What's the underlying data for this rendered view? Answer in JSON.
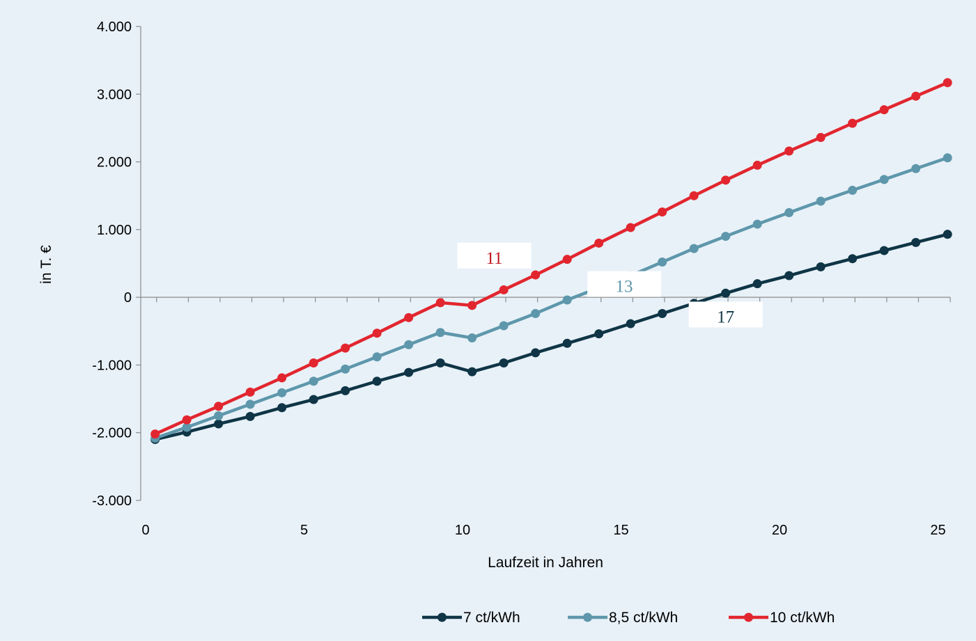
{
  "chart_data": {
    "type": "line",
    "title": "",
    "xlabel": "Laufzeit in Jahren",
    "ylabel": "in T. €",
    "xlim": [
      0,
      25.5
    ],
    "ylim": [
      -3000,
      4000
    ],
    "x_ticks": [
      0,
      5,
      10,
      15,
      20,
      25
    ],
    "x_tick_labels": [
      "0",
      "5",
      "10",
      "15",
      "20",
      "25"
    ],
    "y_ticks": [
      -3000,
      -2000,
      -1000,
      0,
      1000,
      2000,
      3000,
      4000
    ],
    "y_tick_labels": [
      "-3.000",
      "-2.000",
      "-1.000",
      "0",
      "1.000",
      "2.000",
      "3.000",
      "4.000"
    ],
    "grid": false,
    "legend_position": "bottom",
    "x": [
      0.3,
      1.3,
      2.3,
      3.3,
      4.3,
      5.3,
      6.3,
      7.3,
      8.3,
      9.3,
      10.3,
      11.3,
      12.3,
      13.3,
      14.3,
      15.3,
      16.3,
      17.3,
      18.3,
      19.3,
      20.3,
      21.3,
      22.3,
      23.3,
      24.3,
      25.3
    ],
    "series": [
      {
        "name": "7 ct/kWh",
        "color": "#0f3546",
        "values": [
          -2100,
          -1990,
          -1870,
          -1760,
          -1630,
          -1510,
          -1380,
          -1240,
          -1110,
          -970,
          -1100,
          -970,
          -820,
          -680,
          -540,
          -390,
          -240,
          -90,
          60,
          200,
          320,
          450,
          570,
          690,
          810,
          930
        ]
      },
      {
        "name": "8,5 ct/kWh",
        "color": "#5e97ab",
        "values": [
          -2080,
          -1920,
          -1750,
          -1580,
          -1410,
          -1240,
          -1060,
          -880,
          -700,
          -520,
          -600,
          -420,
          -240,
          -40,
          140,
          320,
          520,
          720,
          900,
          1080,
          1250,
          1420,
          1580,
          1740,
          1900,
          2060
        ]
      },
      {
        "name": "10 ct/kWh",
        "color": "#e2262f",
        "values": [
          -2020,
          -1810,
          -1610,
          -1400,
          -1190,
          -970,
          -750,
          -530,
          -300,
          -80,
          -120,
          110,
          330,
          560,
          800,
          1030,
          1260,
          1500,
          1730,
          1950,
          2160,
          2360,
          2570,
          2770,
          2970,
          3170
        ]
      }
    ],
    "annotations": [
      {
        "text": "11",
        "series": "10 ct/kWh",
        "x": 11,
        "y": 600,
        "color": "#c0171f"
      },
      {
        "text": "13",
        "series": "8,5 ct/kWh",
        "x": 15.1,
        "y": 180,
        "color": "#5e97ab"
      },
      {
        "text": "17",
        "series": "7 ct/kWh",
        "x": 18.3,
        "y": -270,
        "color": "#0f3546"
      }
    ]
  }
}
